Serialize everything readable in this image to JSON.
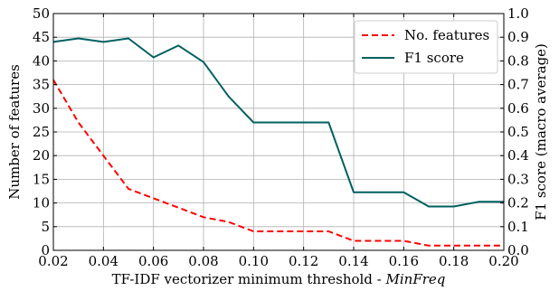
{
  "chart_data": {
    "type": "line",
    "xlabel_prefix": "TF-IDF vectorizer minimum threshold - ",
    "xlabel_var": "MinFreq",
    "ylabel_left": "Number of features",
    "ylabel_right": "F1 score (macro average)",
    "xlim": [
      0.02,
      0.2
    ],
    "ylim_left": [
      0,
      50
    ],
    "ylim_right": [
      0.0,
      1.0
    ],
    "x_ticks": [
      "0.02",
      "0.04",
      "0.06",
      "0.08",
      "0.10",
      "0.12",
      "0.14",
      "0.16",
      "0.18",
      "0.20"
    ],
    "y_left_ticks": [
      "0",
      "5",
      "10",
      "15",
      "20",
      "25",
      "30",
      "35",
      "40",
      "45",
      "50"
    ],
    "y_right_ticks": [
      "0.0",
      "0.1",
      "0.2",
      "0.3",
      "0.4",
      "0.5",
      "0.6",
      "0.7",
      "0.8",
      "0.9",
      "1.0"
    ],
    "grid": true,
    "legend_position": "top-right",
    "series": [
      {
        "name": "No. features",
        "axis": "left",
        "color": "#ff0000",
        "style": "dashed",
        "x": [
          0.02,
          0.03,
          0.04,
          0.05,
          0.06,
          0.07,
          0.08,
          0.09,
          0.1,
          0.11,
          0.12,
          0.13,
          0.14,
          0.15,
          0.16,
          0.17,
          0.18,
          0.19,
          0.2
        ],
        "y": [
          36,
          27,
          20,
          13,
          11,
          9,
          7,
          6,
          4,
          4,
          4,
          4,
          2,
          2,
          2,
          1,
          1,
          1,
          1
        ]
      },
      {
        "name": "F1 score",
        "axis": "right",
        "color": "#006060",
        "style": "solid",
        "x": [
          0.02,
          0.03,
          0.04,
          0.05,
          0.06,
          0.07,
          0.08,
          0.09,
          0.1,
          0.11,
          0.12,
          0.13,
          0.14,
          0.15,
          0.16,
          0.17,
          0.18,
          0.19,
          0.2
        ],
        "y": [
          0.88,
          0.895,
          0.88,
          0.895,
          0.815,
          0.865,
          0.795,
          0.65,
          0.54,
          0.54,
          0.54,
          0.54,
          0.245,
          0.245,
          0.245,
          0.185,
          0.185,
          0.205,
          0.205
        ]
      }
    ]
  }
}
